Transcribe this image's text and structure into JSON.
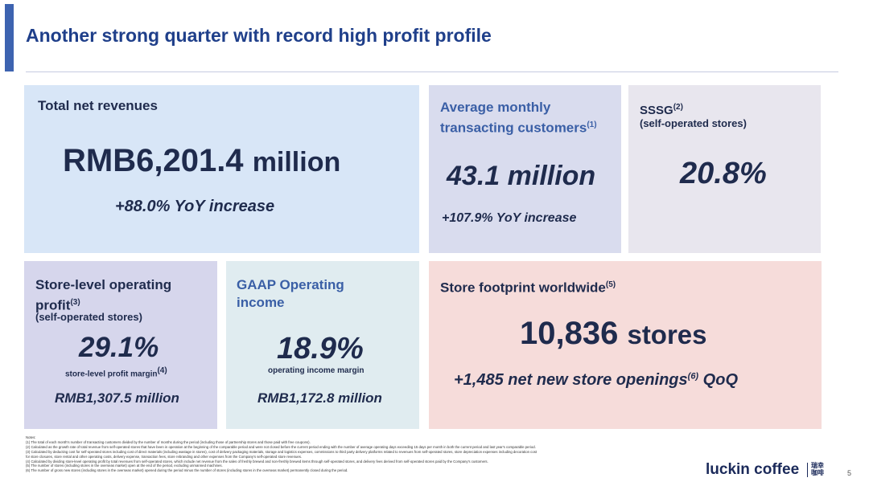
{
  "title": "Another strong quarter with record high profit profile",
  "cards": {
    "revenue": {
      "label": "Total net revenues",
      "value_num": "RMB6,201.4",
      "value_unit": "million",
      "yoy": "+88.0% YoY increase"
    },
    "mtc": {
      "label_line1": "Average monthly",
      "label_line2": "transacting customers",
      "ref": "(1)",
      "value_num": "43.1",
      "value_unit": "million",
      "yoy": "+107.9% YoY increase"
    },
    "sssg": {
      "label": "SSSG",
      "ref": "(2)",
      "sub": "(self-operated stores)",
      "value": "20.8%"
    },
    "slop": {
      "label_line1": "Store-level operating",
      "label_line2": "profit",
      "ref": "(3)",
      "sub": "(self-operated stores)",
      "value": "29.1%",
      "margin_label": "store-level profit margin",
      "margin_ref": "(4)",
      "amount": "RMB1,307.5 million"
    },
    "gaap": {
      "label_line1": "GAAP Operating",
      "label_line2": "income",
      "value": "18.9%",
      "margin_label": "operating income margin",
      "amount": "RMB1,172.8 million"
    },
    "stores": {
      "label": "Store footprint worldwide",
      "ref": "(5)",
      "value_num": "10,836",
      "value_unit": "stores",
      "openings_pre": "+1,485 net new store openings",
      "openings_ref": "(6)",
      "openings_post": "QoQ"
    }
  },
  "notes": [
    "Notes:",
    "(1)  The total of each month's number of transacting customers divided by the number of months during the period (including those of partnership stores and those paid with free coupons).",
    "(2)  Calculated as the growth rate of total revenue from self-operated stores that have been in operation at the beginning of the comparable period and were not closed before the current period ending with the number of average operating days exceeding 15 days per month in both the current period and last year's comparable period.",
    "(3)  Calculated by deducting cost for self-operated stores including cost of direct materials (including wastage in stores), cost of delivery packaging materials, storage and logistics expenses, commissions to third party delivery platforms related to revenues from self-operated stores, store depreciation expenses including decoration cost",
    "      for store closures, store rental and other operating costs, delivery expense, transaction fees, store rebranding and other expenses from the Company's self-operated store revenues.",
    "(4)  Calculated by dividing store-level operating profit by total revenues from self-operated stores, which include net revenue from the sales of freshly brewed and non-freshly brewed items through self-operated stores, and delivery fees derived from self-operated stores paid by the Company's customers.",
    "(5)  The number of stores (including stores in the overseas market) open at the end of the period, excluding unmanned machines.",
    "(6)  The number of gross new stores (including stores in the overseas market) opened during the period minus the number of stores (including stores in the overseas market) permanently closed during the period."
  ],
  "logo": {
    "text": "luckin coffee",
    "cn_line1": "瑞幸",
    "cn_line2": "咖啡"
  },
  "page_number": "5"
}
